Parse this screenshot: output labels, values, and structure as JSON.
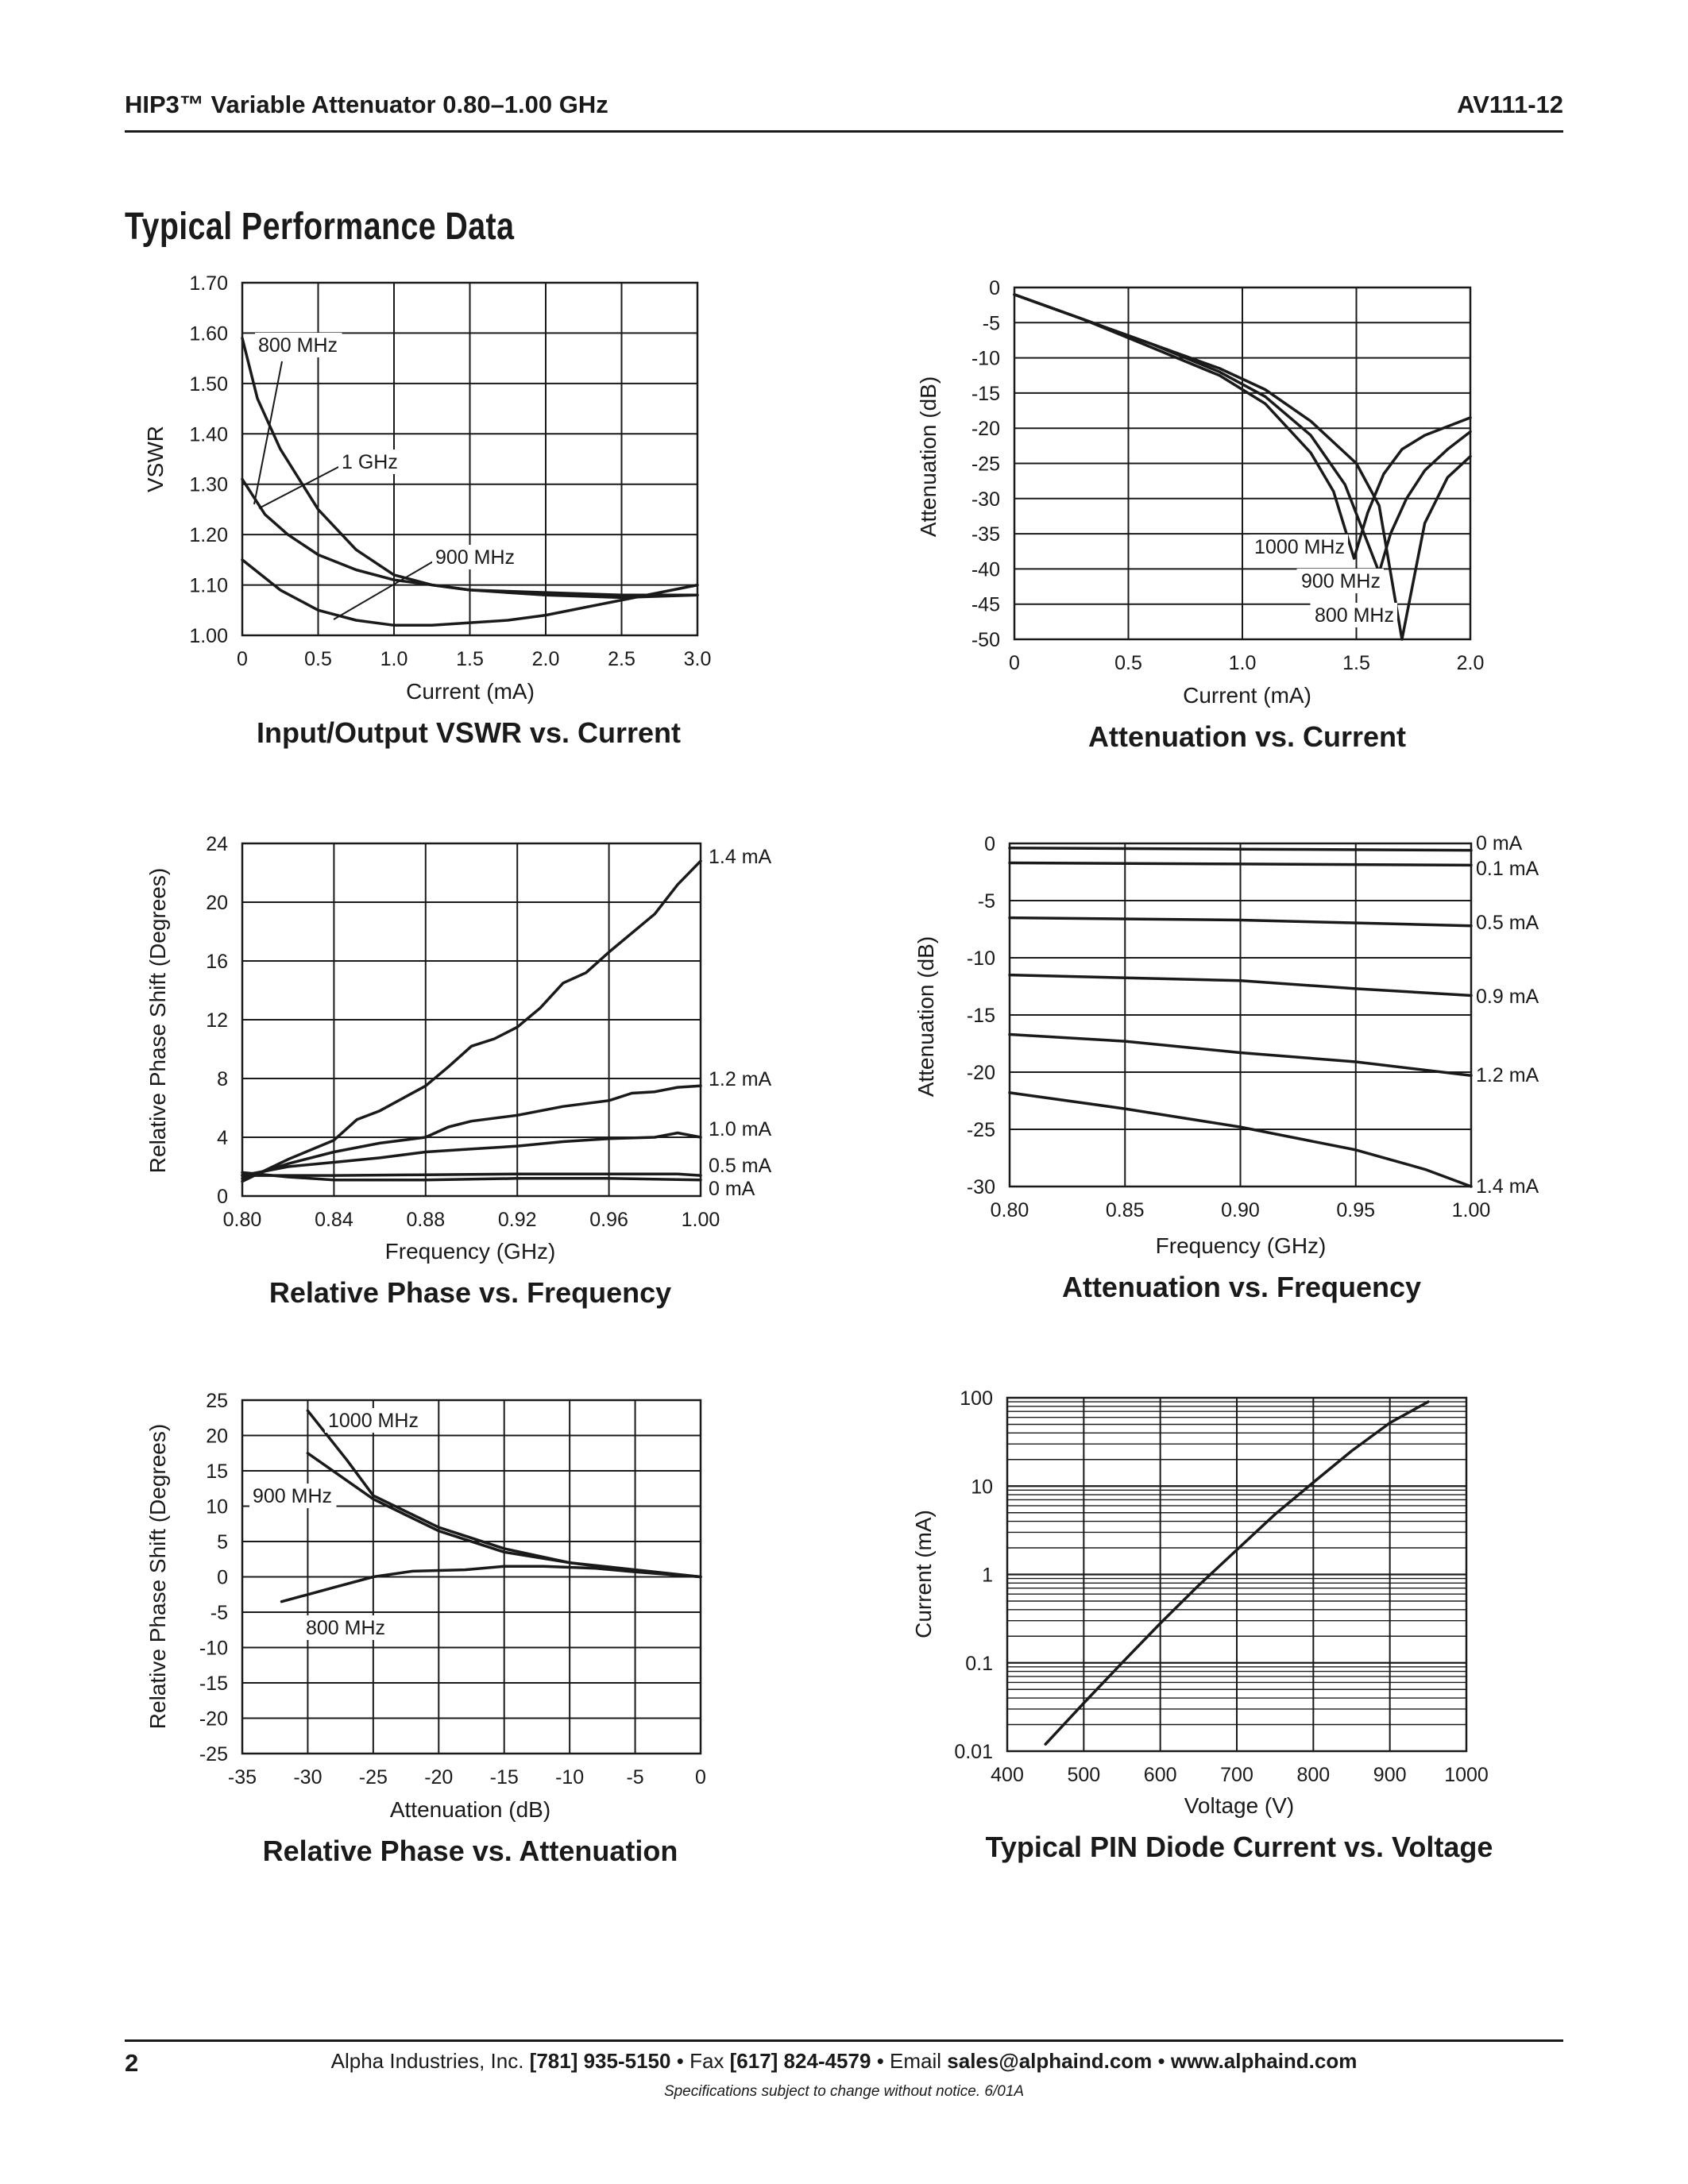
{
  "header": {
    "title": "HIP3™ Variable Attenuator 0.80–1.00 GHz",
    "part_number": "AV111-12"
  },
  "section_title": "Typical Performance Data",
  "footer": {
    "page_number": "2",
    "company": "Alpha Industries, Inc.",
    "phone": "[781] 935-5150",
    "fax_label": "Fax",
    "fax": "[617] 824-4579",
    "email_label": "Email",
    "email": "sales@alphaind.com",
    "website": "www.alphaind.com",
    "separator": "•",
    "disclaimer": "Specifications subject to change without notice.  6/01A"
  },
  "chart_data": [
    {
      "type": "line",
      "title": "Input/Output VSWR vs. Current",
      "xlabel": "Current (mA)",
      "ylabel": "VSWR",
      "xlim": [
        0,
        3.0
      ],
      "ylim": [
        1.0,
        1.7
      ],
      "xticks": [
        "0",
        "0.5",
        "1.0",
        "1.5",
        "2.0",
        "2.5",
        "3.0"
      ],
      "yticks": [
        "1.00",
        "1.10",
        "1.20",
        "1.30",
        "1.40",
        "1.50",
        "1.60",
        "1.70"
      ],
      "grid": true,
      "series": [
        {
          "name": "800 MHz",
          "x": [
            0,
            0.1,
            0.25,
            0.5,
            0.75,
            1.0,
            1.25,
            1.5,
            2.0,
            2.5,
            3.0
          ],
          "y": [
            1.59,
            1.47,
            1.37,
            1.25,
            1.17,
            1.12,
            1.1,
            1.09,
            1.085,
            1.08,
            1.08
          ]
        },
        {
          "name": "1 GHz",
          "x": [
            0,
            0.15,
            0.3,
            0.5,
            0.75,
            1.0,
            1.5,
            2.0,
            2.5,
            3.0
          ],
          "y": [
            1.31,
            1.24,
            1.2,
            1.16,
            1.13,
            1.11,
            1.09,
            1.08,
            1.075,
            1.08
          ]
        },
        {
          "name": "900 MHz",
          "x": [
            0,
            0.25,
            0.5,
            0.75,
            1.0,
            1.25,
            1.5,
            1.75,
            2.0,
            2.5,
            3.0
          ],
          "y": [
            1.15,
            1.09,
            1.05,
            1.03,
            1.02,
            1.02,
            1.025,
            1.03,
            1.04,
            1.07,
            1.1
          ]
        }
      ]
    },
    {
      "type": "line",
      "title": "Attenuation vs. Current",
      "xlabel": "Current (mA)",
      "ylabel": "Attenuation (dB)",
      "xlim": [
        0,
        2.0
      ],
      "ylim": [
        -50,
        0
      ],
      "xticks": [
        "0",
        "0.5",
        "1.0",
        "1.5",
        "2.0"
      ],
      "yticks": [
        "0",
        "-5",
        "-10",
        "-15",
        "-20",
        "-25",
        "-30",
        "-35",
        "-40",
        "-45",
        "-50"
      ],
      "grid": true,
      "series": [
        {
          "name": "1000 MHz",
          "x": [
            0,
            0.3,
            0.6,
            0.9,
            1.1,
            1.3,
            1.4,
            1.49,
            1.55,
            1.62,
            1.7,
            1.8,
            2.0
          ],
          "y": [
            -1,
            -4.5,
            -8.5,
            -12.5,
            -16.5,
            -23.5,
            -29,
            -38.5,
            -32,
            -26.5,
            -23,
            -21,
            -18.5
          ]
        },
        {
          "name": "900 MHz",
          "x": [
            0,
            0.3,
            0.6,
            0.9,
            1.1,
            1.3,
            1.45,
            1.6,
            1.65,
            1.72,
            1.8,
            1.9,
            2.0
          ],
          "y": [
            -1,
            -4.5,
            -8,
            -12,
            -15.5,
            -21,
            -28,
            -40.5,
            -35,
            -30,
            -26,
            -23,
            -20.5
          ]
        },
        {
          "name": "800 MHz",
          "x": [
            0,
            0.3,
            0.6,
            0.9,
            1.1,
            1.3,
            1.5,
            1.6,
            1.7,
            1.8,
            1.9,
            2.0
          ],
          "y": [
            -1,
            -4.5,
            -8,
            -11.5,
            -14.5,
            -19,
            -25,
            -31,
            -50,
            -33.5,
            -27,
            -24
          ]
        }
      ]
    },
    {
      "type": "line",
      "title": "Relative Phase vs. Frequency",
      "xlabel": "Frequency (GHz)",
      "ylabel": "Relative Phase Shift (Degrees)",
      "xlim": [
        0.8,
        1.0
      ],
      "ylim": [
        0,
        24
      ],
      "xticks": [
        "0.80",
        "0.84",
        "0.88",
        "0.92",
        "0.96",
        "1.00"
      ],
      "yticks": [
        "0",
        "4",
        "8",
        "12",
        "16",
        "20",
        "24"
      ],
      "grid": true,
      "series": [
        {
          "name": "1.4 mA",
          "x": [
            0.8,
            0.82,
            0.84,
            0.85,
            0.86,
            0.88,
            0.89,
            0.9,
            0.91,
            0.92,
            0.93,
            0.94,
            0.95,
            0.96,
            0.98,
            0.99,
            1.0
          ],
          "y": [
            1.0,
            2.5,
            3.8,
            5.2,
            5.8,
            7.5,
            8.8,
            10.2,
            10.7,
            11.5,
            12.8,
            14.5,
            15.2,
            16.6,
            19.2,
            21.2,
            22.8
          ]
        },
        {
          "name": "1.2 mA",
          "x": [
            0.8,
            0.82,
            0.84,
            0.86,
            0.88,
            0.89,
            0.9,
            0.92,
            0.94,
            0.96,
            0.97,
            0.98,
            0.99,
            1.0
          ],
          "y": [
            1.2,
            2.2,
            3.0,
            3.6,
            4.0,
            4.7,
            5.1,
            5.5,
            6.1,
            6.5,
            7.0,
            7.1,
            7.4,
            7.5
          ]
        },
        {
          "name": "1.0 mA",
          "x": [
            0.8,
            0.82,
            0.84,
            0.86,
            0.88,
            0.9,
            0.92,
            0.94,
            0.96,
            0.98,
            0.99,
            1.0
          ],
          "y": [
            1.4,
            2.0,
            2.3,
            2.6,
            3.0,
            3.2,
            3.4,
            3.7,
            3.9,
            4.0,
            4.3,
            4.0
          ]
        },
        {
          "name": "0.5 mA",
          "x": [
            0.8,
            0.84,
            0.88,
            0.92,
            0.96,
            0.99,
            1.0
          ],
          "y": [
            1.4,
            1.4,
            1.45,
            1.5,
            1.5,
            1.5,
            1.4
          ]
        },
        {
          "name": "0 mA",
          "x": [
            0.8,
            0.82,
            0.84,
            0.88,
            0.92,
            0.96,
            1.0
          ],
          "y": [
            1.6,
            1.3,
            1.1,
            1.1,
            1.2,
            1.2,
            1.1
          ]
        }
      ]
    },
    {
      "type": "line",
      "title": "Attenuation vs. Frequency",
      "xlabel": "Frequency (GHz)",
      "ylabel": "Attenuation (dB)",
      "xlim": [
        0.8,
        1.0
      ],
      "ylim": [
        -30,
        0
      ],
      "xticks": [
        "0.80",
        "0.85",
        "0.90",
        "0.95",
        "1.00"
      ],
      "yticks": [
        "0",
        "-5",
        "-10",
        "-15",
        "-20",
        "-25",
        "-30"
      ],
      "grid": true,
      "series": [
        {
          "name": "0 mA",
          "x": [
            0.8,
            0.9,
            1.0
          ],
          "y": [
            -0.4,
            -0.5,
            -0.6
          ]
        },
        {
          "name": "0.1 mA",
          "x": [
            0.8,
            0.9,
            1.0
          ],
          "y": [
            -1.7,
            -1.8,
            -1.9
          ]
        },
        {
          "name": "0.5 mA",
          "x": [
            0.8,
            0.9,
            1.0
          ],
          "y": [
            -6.5,
            -6.7,
            -7.2
          ]
        },
        {
          "name": "0.9 mA",
          "x": [
            0.8,
            0.9,
            0.95,
            1.0
          ],
          "y": [
            -11.5,
            -12.0,
            -12.7,
            -13.3
          ]
        },
        {
          "name": "1.2 mA",
          "x": [
            0.8,
            0.85,
            0.9,
            0.95,
            1.0
          ],
          "y": [
            -16.7,
            -17.3,
            -18.3,
            -19.1,
            -20.3
          ]
        },
        {
          "name": "1.4 mA",
          "x": [
            0.8,
            0.85,
            0.9,
            0.95,
            0.98,
            1.0
          ],
          "y": [
            -21.8,
            -23.2,
            -24.8,
            -26.8,
            -28.5,
            -30
          ]
        }
      ]
    },
    {
      "type": "line",
      "title": "Relative Phase vs. Attenuation",
      "xlabel": "Attenuation (dB)",
      "ylabel": "Relative Phase Shift (Degrees)",
      "xlim": [
        -35,
        0
      ],
      "ylim": [
        -25,
        25
      ],
      "xticks": [
        "-35",
        "-30",
        "-25",
        "-20",
        "-15",
        "-10",
        "-5",
        "0"
      ],
      "yticks": [
        "25",
        "20",
        "15",
        "10",
        "5",
        "0",
        "-5",
        "-10",
        "-15",
        "-20",
        "-25"
      ],
      "grid": true,
      "series": [
        {
          "name": "1000 MHz",
          "x": [
            -30,
            -27,
            -25,
            -20,
            -15,
            -10,
            -5,
            0
          ],
          "y": [
            23.5,
            16.5,
            11.5,
            7.0,
            4.0,
            2.0,
            1.0,
            0.0
          ]
        },
        {
          "name": "900 MHz",
          "x": [
            -30,
            -25,
            -20,
            -15,
            -10,
            -5,
            0
          ],
          "y": [
            17.5,
            11.0,
            6.5,
            3.5,
            2.0,
            0.8,
            0.0
          ]
        },
        {
          "name": "800 MHz",
          "x": [
            -32,
            -28,
            -25,
            -22,
            -18,
            -15,
            -12,
            -8,
            -5,
            0
          ],
          "y": [
            -3.5,
            -1.5,
            0.0,
            0.8,
            1.0,
            1.5,
            1.5,
            1.2,
            0.7,
            0.0
          ]
        }
      ]
    },
    {
      "type": "line",
      "title": "Typical PIN Diode Current vs. Voltage",
      "xlabel": "Voltage (V)",
      "ylabel": "Current (mA)",
      "xlim": [
        400,
        1000
      ],
      "ylim": [
        0.01,
        100
      ],
      "yscale": "log",
      "xticks": [
        "400",
        "500",
        "600",
        "700",
        "800",
        "900",
        "1000"
      ],
      "yticks": [
        "0.01",
        "0.1",
        "1",
        "10",
        "100"
      ],
      "grid": true,
      "series": [
        {
          "name": "",
          "x": [
            450,
            500,
            550,
            600,
            650,
            700,
            750,
            800,
            850,
            900,
            950
          ],
          "y": [
            0.012,
            0.035,
            0.1,
            0.28,
            0.75,
            1.9,
            4.8,
            11,
            25,
            52,
            90
          ]
        }
      ]
    }
  ]
}
